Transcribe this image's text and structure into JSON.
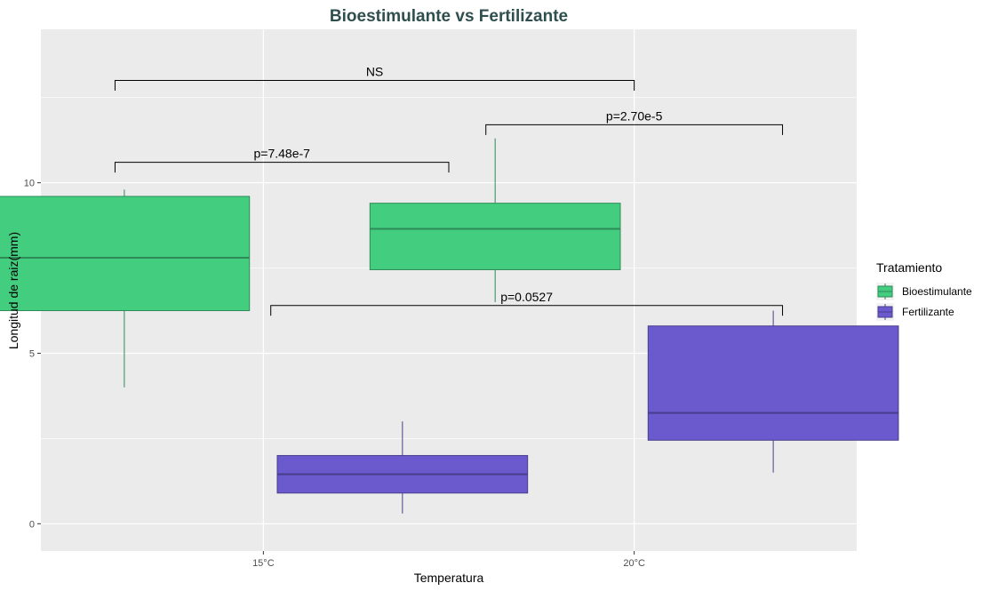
{
  "chart_data": {
    "type": "boxplot",
    "title": "Bioestimulante vs Fertilizante",
    "xlabel": "Temperatura",
    "ylabel": "Longitud de raiz(mm)",
    "categories": [
      "15°C",
      "20°C"
    ],
    "ylim": [
      -0.8,
      14.5
    ],
    "yticks": [
      0,
      5,
      10
    ],
    "grid": true,
    "legend": {
      "title": "Tratamiento",
      "placement": "right"
    },
    "series": [
      {
        "name": "Bioestimulante",
        "color": "#43cd7e",
        "edge": "#2e8b57",
        "boxes": [
          {
            "min": 4.0,
            "q1": 6.25,
            "median": 7.8,
            "q3": 9.6,
            "max": 9.8
          },
          {
            "min": 6.5,
            "q1": 7.45,
            "median": 8.65,
            "q3": 9.4,
            "max": 11.3
          }
        ]
      },
      {
        "name": "Fertilizante",
        "color": "#6a5acd",
        "edge": "#483d8b",
        "boxes": [
          {
            "min": 0.3,
            "q1": 0.9,
            "median": 1.45,
            "q3": 2.0,
            "max": 3.0
          },
          {
            "min": 1.5,
            "q1": 2.45,
            "median": 3.25,
            "q3": 5.8,
            "max": 6.25
          }
        ]
      }
    ],
    "annotations": [
      {
        "label": "NS",
        "x_start": 0.6,
        "x_end": 2.0,
        "y": 13.0,
        "tip": 0.3
      },
      {
        "label": "p=2.70e-5",
        "x_start": 1.6,
        "x_end": 2.4,
        "y": 11.7,
        "tip": 0.3
      },
      {
        "label": "p=7.48e-7",
        "x_start": 0.6,
        "x_end": 1.5,
        "y": 10.6,
        "tip": 0.3
      },
      {
        "label": "p=0.0527",
        "x_start": 1.02,
        "x_end": 2.4,
        "y": 6.4,
        "tip": 0.3
      }
    ]
  }
}
